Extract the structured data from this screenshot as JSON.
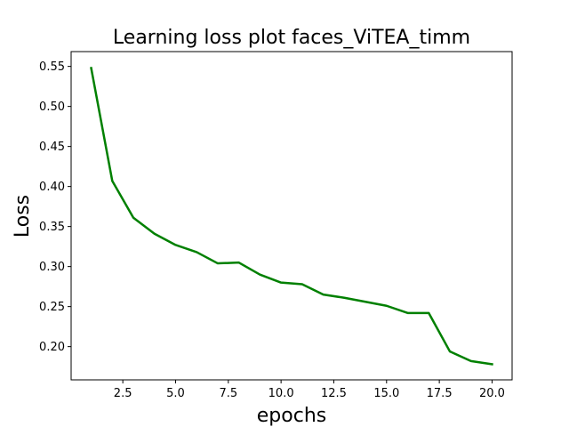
{
  "chart_data": {
    "type": "line",
    "title": "Learning loss plot faces_ViTEA_timm",
    "xlabel": "epochs",
    "ylabel": "Loss",
    "xlim": [
      0.05,
      20.95
    ],
    "ylim": [
      0.1585,
      0.5685
    ],
    "xticks": [
      2.5,
      5.0,
      7.5,
      10.0,
      12.5,
      15.0,
      17.5,
      20.0
    ],
    "xtick_labels": [
      "2.5",
      "5.0",
      "7.5",
      "10.0",
      "12.5",
      "15.0",
      "17.5",
      "20.0"
    ],
    "yticks": [
      0.2,
      0.25,
      0.3,
      0.35,
      0.4,
      0.45,
      0.5,
      0.55
    ],
    "ytick_labels": [
      "0.20",
      "0.25",
      "0.30",
      "0.35",
      "0.40",
      "0.45",
      "0.50",
      "0.55"
    ],
    "grid": false,
    "legend": "none",
    "series": [
      {
        "color": "#008000",
        "x": [
          1,
          2,
          3,
          4,
          5,
          6,
          7,
          8,
          9,
          10,
          11,
          12,
          13,
          14,
          15,
          16,
          17,
          18,
          19,
          20
        ],
        "y": [
          0.548,
          0.407,
          0.361,
          0.341,
          0.327,
          0.318,
          0.304,
          0.305,
          0.29,
          0.28,
          0.278,
          0.265,
          0.261,
          0.256,
          0.251,
          0.242,
          0.242,
          0.194,
          0.182,
          0.178
        ]
      }
    ]
  }
}
